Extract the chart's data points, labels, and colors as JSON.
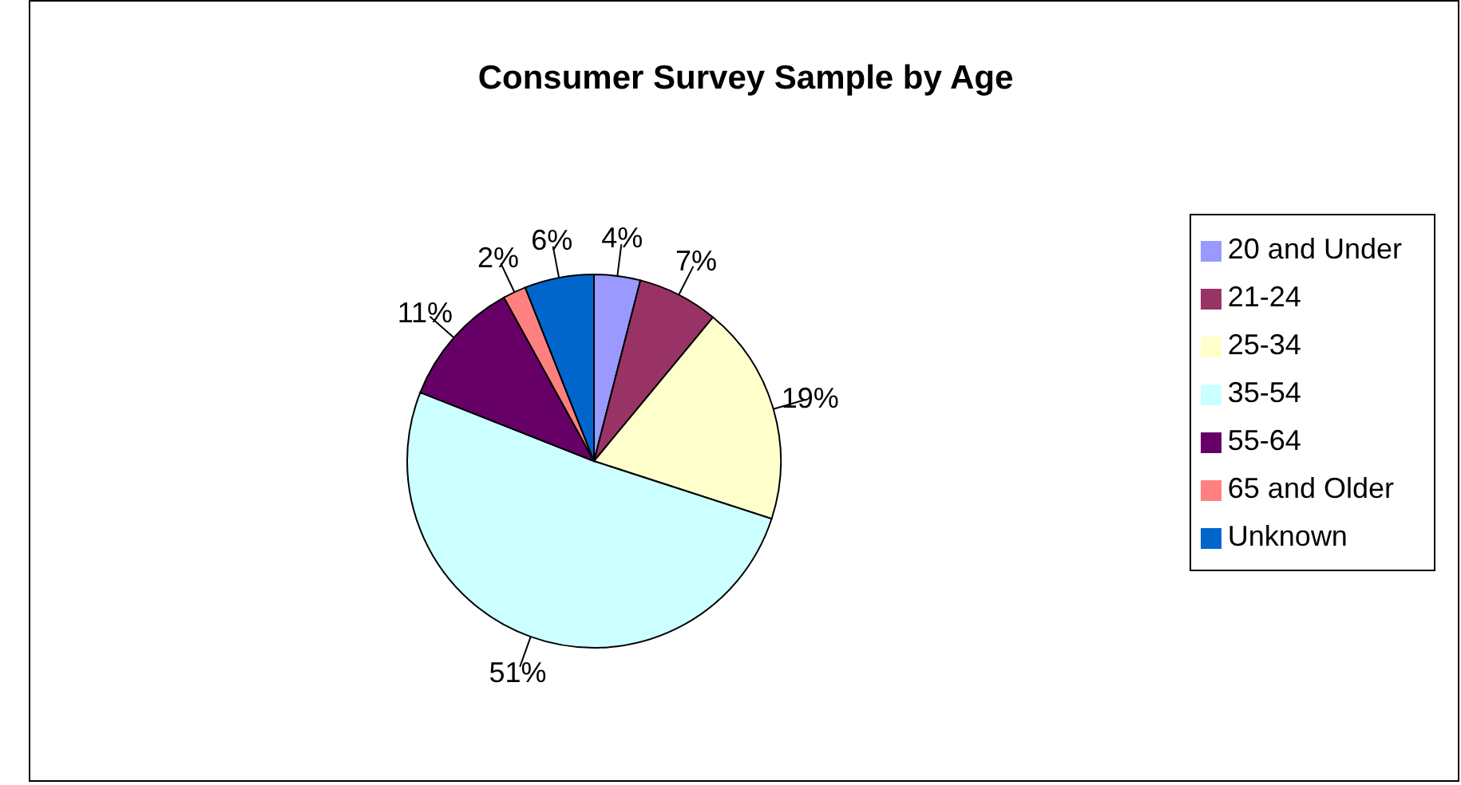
{
  "chart_data": {
    "type": "pie",
    "title": "Consumer Survey Sample by Age",
    "categories": [
      "20 and Under",
      "21-24",
      "25-34",
      "35-54",
      "55-64",
      "65 and Older",
      "Unknown"
    ],
    "values": [
      4,
      7,
      19,
      51,
      11,
      2,
      6
    ],
    "value_labels": [
      "4%",
      "7%",
      "19%",
      "51%",
      "11%",
      "2%",
      "6%"
    ],
    "colors": [
      "#9999ff",
      "#993366",
      "#ffffcc",
      "#ccffff",
      "#660066",
      "#ff8080",
      "#0066cc"
    ],
    "legend": "right"
  }
}
